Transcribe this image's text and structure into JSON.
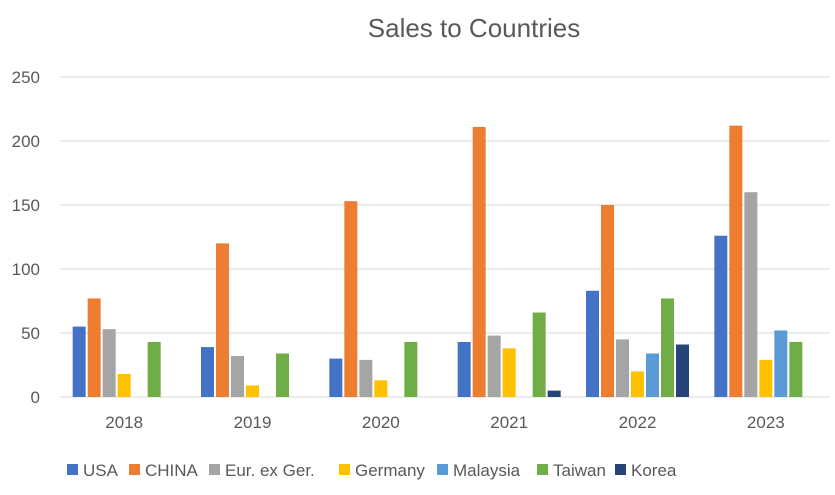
{
  "chart_data": {
    "type": "bar",
    "title": "Sales to Countries",
    "xlabel": "",
    "ylabel": "",
    "ylim": [
      0,
      250
    ],
    "yticks": [
      0,
      50,
      100,
      150,
      200,
      250
    ],
    "grid": true,
    "legend_position": "bottom",
    "categories": [
      "2018",
      "2019",
      "2020",
      "2021",
      "2022",
      "2023"
    ],
    "series": [
      {
        "name": "USA",
        "color": "#4472C4",
        "values": [
          55,
          39,
          30,
          43,
          83,
          126
        ]
      },
      {
        "name": "CHINA",
        "color": "#ED7D31",
        "values": [
          77,
          120,
          153,
          211,
          150,
          212
        ]
      },
      {
        "name": "Eur. ex Ger.",
        "color": "#A5A5A5",
        "values": [
          53,
          32,
          29,
          48,
          45,
          160
        ]
      },
      {
        "name": "Germany",
        "color": "#FFC000",
        "values": [
          18,
          9,
          13,
          38,
          20,
          29
        ]
      },
      {
        "name": "Malaysia",
        "color": "#5B9BD5",
        "values": [
          0,
          0,
          0,
          0,
          34,
          52
        ]
      },
      {
        "name": "Taiwan",
        "color": "#70AD47",
        "values": [
          43,
          34,
          43,
          66,
          77,
          43
        ]
      },
      {
        "name": "Korea",
        "color": "#264478",
        "values": [
          0,
          0,
          0,
          5,
          41,
          0
        ]
      }
    ]
  }
}
